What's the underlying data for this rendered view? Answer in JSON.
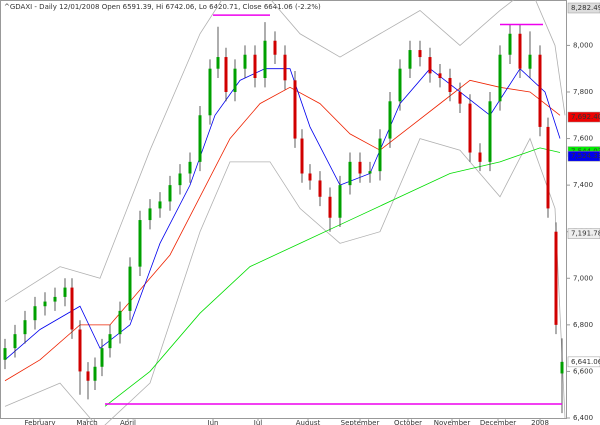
{
  "chart_data": {
    "type": "candlestick",
    "title": "^GDAXI - Daily 12/01/2008 Open 6591.39, Hi 6742.06, Lo 6420.71, Close 6641.06 (-2.2%)",
    "xlim": [
      0,
      567
    ],
    "xticks": [
      {
        "value": 40,
        "label": "February"
      },
      {
        "value": 87,
        "label": "March"
      },
      {
        "value": 128,
        "label": "April"
      },
      {
        "value": 213,
        "label": "Jun"
      },
      {
        "value": 258,
        "label": "Jul"
      },
      {
        "value": 308,
        "label": "August"
      },
      {
        "value": 360,
        "label": "September"
      },
      {
        "value": 408,
        "label": "October"
      },
      {
        "value": 452,
        "label": "November"
      },
      {
        "value": 498,
        "label": "December"
      },
      {
        "value": 540,
        "label": "2008"
      }
    ],
    "ylim": [
      6400,
      8195
    ],
    "yticks": [
      {
        "value": 6400,
        "label": "6,400"
      },
      {
        "value": 6600,
        "label": "6,600"
      },
      {
        "value": 6800,
        "label": "6,800"
      },
      {
        "value": 7000,
        "label": "7,000"
      },
      {
        "value": 7200,
        "label": "7,200"
      },
      {
        "value": 7400,
        "label": "7,400"
      },
      {
        "value": 7600,
        "label": "7,600"
      },
      {
        "value": 7800,
        "label": "7,800"
      },
      {
        "value": 8000,
        "label": "8,000"
      }
    ],
    "up_color": "#00a000",
    "down_color": "#d00000",
    "x": [
      5,
      15,
      25,
      35,
      45,
      55,
      65,
      72,
      80,
      88,
      95,
      102,
      110,
      120,
      130,
      140,
      150,
      160,
      170,
      180,
      190,
      200,
      210,
      218,
      226,
      235,
      245,
      255,
      265,
      275,
      285,
      295,
      302,
      310,
      320,
      330,
      340,
      350,
      360,
      370,
      380,
      390,
      400,
      410,
      420,
      430,
      440,
      450,
      460,
      470,
      480,
      490,
      500,
      510,
      520,
      530,
      540,
      548,
      556,
      562
    ],
    "open": [
      6650,
      6700,
      6760,
      6820,
      6880,
      6900,
      6920,
      6960,
      6780,
      6600,
      6560,
      6620,
      6700,
      6760,
      6860,
      7050,
      7250,
      7300,
      7330,
      7400,
      7450,
      7500,
      7700,
      7900,
      7950,
      7800,
      7900,
      7960,
      7860,
      8020,
      7960,
      7850,
      7600,
      7450,
      7420,
      7350,
      7260,
      7400,
      7500,
      7450,
      7460,
      7600,
      7760,
      7900,
      7980,
      7950,
      7880,
      7860,
      7800,
      7750,
      7540,
      7500,
      7760,
      7960,
      8050,
      7900,
      7960,
      7650,
      7200,
      6591.39
    ],
    "high": [
      6740,
      6800,
      6860,
      6920,
      6940,
      6960,
      7000,
      7000,
      6820,
      6640,
      6660,
      6740,
      6800,
      6900,
      7090,
      7290,
      7340,
      7370,
      7440,
      7490,
      7540,
      7740,
      7940,
      8080,
      7990,
      7940,
      8000,
      8000,
      8100,
      8060,
      8000,
      7890,
      7640,
      7490,
      7460,
      7390,
      7440,
      7540,
      7540,
      7500,
      7640,
      7800,
      7940,
      8020,
      8020,
      7990,
      7920,
      7900,
      7840,
      7790,
      7580,
      7800,
      8000,
      8090,
      8090,
      8060,
      8000,
      7690,
      7240,
      6742.06
    ],
    "low": [
      6610,
      6660,
      6720,
      6780,
      6840,
      6860,
      6880,
      6740,
      6500,
      6480,
      6520,
      6580,
      6660,
      6720,
      6820,
      7010,
      7210,
      7260,
      7290,
      7360,
      7410,
      7460,
      7660,
      7860,
      7760,
      7760,
      7860,
      7820,
      7820,
      7920,
      7810,
      7560,
      7410,
      7380,
      7310,
      7200,
      7220,
      7360,
      7410,
      7410,
      7420,
      7560,
      7720,
      7860,
      7910,
      7840,
      7820,
      7760,
      7710,
      7500,
      7460,
      7460,
      7720,
      7920,
      7860,
      7860,
      7610,
      7260,
      6760,
      6420.71
    ],
    "close": [
      6700,
      6760,
      6820,
      6880,
      6900,
      6920,
      6960,
      6780,
      6600,
      6560,
      6620,
      6700,
      6760,
      6860,
      7050,
      7250,
      7300,
      7330,
      7400,
      7450,
      7500,
      7700,
      7900,
      7950,
      7800,
      7900,
      7960,
      7860,
      8020,
      7960,
      7850,
      7600,
      7450,
      7420,
      7350,
      7260,
      7400,
      7500,
      7450,
      7460,
      7600,
      7760,
      7900,
      7980,
      7950,
      7880,
      7860,
      7800,
      7750,
      7540,
      7500,
      7760,
      7960,
      8050,
      7900,
      7960,
      7650,
      7300,
      6800,
      6641.06
    ],
    "lines": [
      {
        "color": "#b0b0b0",
        "x": [
          5,
          60,
          100,
          150,
          200,
          230,
          270,
          300,
          340,
          380,
          420,
          460,
          500,
          530,
          555,
          565
        ],
        "values": [
          6900,
          7050,
          7000,
          7550,
          8050,
          8250,
          8200,
          8050,
          7950,
          8050,
          8150,
          8000,
          8150,
          8250,
          8000,
          7700
        ]
      },
      {
        "color": "#b0b0b0",
        "x": [
          5,
          60,
          100,
          150,
          200,
          230,
          270,
          300,
          340,
          380,
          420,
          460,
          500,
          530,
          555,
          565
        ],
        "values": [
          6450,
          6550,
          6350,
          6550,
          7200,
          7500,
          7500,
          7300,
          7150,
          7200,
          7600,
          7550,
          7350,
          7600,
          7300,
          6400
        ]
      },
      {
        "color": "#00dd00",
        "x": [
          105,
          150,
          200,
          250,
          300,
          350,
          400,
          450,
          500,
          540,
          560
        ],
        "values": [
          6450,
          6600,
          6850,
          7050,
          7150,
          7250,
          7350,
          7450,
          7500,
          7560,
          7540
        ]
      },
      {
        "color": "#ee2200",
        "x": [
          5,
          40,
          80,
          110,
          140,
          170,
          200,
          230,
          260,
          290,
          320,
          350,
          380,
          410,
          440,
          470,
          500,
          530,
          560
        ],
        "values": [
          6560,
          6650,
          6800,
          6800,
          6950,
          7100,
          7350,
          7600,
          7750,
          7820,
          7750,
          7620,
          7550,
          7650,
          7750,
          7850,
          7820,
          7800,
          7700
        ]
      },
      {
        "color": "#0000ee",
        "x": [
          5,
          40,
          80,
          100,
          130,
          160,
          190,
          215,
          240,
          265,
          290,
          310,
          340,
          370,
          400,
          430,
          460,
          490,
          520,
          545,
          560
        ],
        "values": [
          6650,
          6780,
          6880,
          6700,
          6800,
          7150,
          7400,
          7700,
          7850,
          7900,
          7900,
          7650,
          7400,
          7450,
          7750,
          7900,
          7800,
          7700,
          7900,
          7800,
          7600
        ]
      }
    ],
    "hlines": [
      {
        "color": "#ee00ee",
        "value": 6460,
        "x": [
          105,
          562
        ]
      },
      {
        "color": "#ee00ee",
        "value": 8130,
        "x": [
          213,
          270
        ]
      },
      {
        "color": "#ee00ee",
        "value": 8090,
        "x": [
          500,
          543
        ]
      }
    ],
    "price_labels": [
      {
        "value": 8282.49,
        "label": "8,282.49",
        "color": "#dddddd",
        "text_color": "#333333"
      },
      {
        "value": 7692.4,
        "label": "7,692.40",
        "color": "#ee0000",
        "text_color": "#ffffff"
      },
      {
        "value": 7544.03,
        "label": "7,544.03",
        "color": "#00ee00",
        "text_color": "#000000"
      },
      {
        "value": 7524.33,
        "label": "7,524.33",
        "color": "#0000ee",
        "text_color": "#ffffff"
      },
      {
        "value": 7191.78,
        "label": "7,191.78",
        "color": "#eeeeee",
        "text_color": "#333333"
      },
      {
        "value": 6641.06,
        "label": "6,641.06",
        "color": "#ffffff",
        "text_color": "#000000"
      }
    ]
  }
}
